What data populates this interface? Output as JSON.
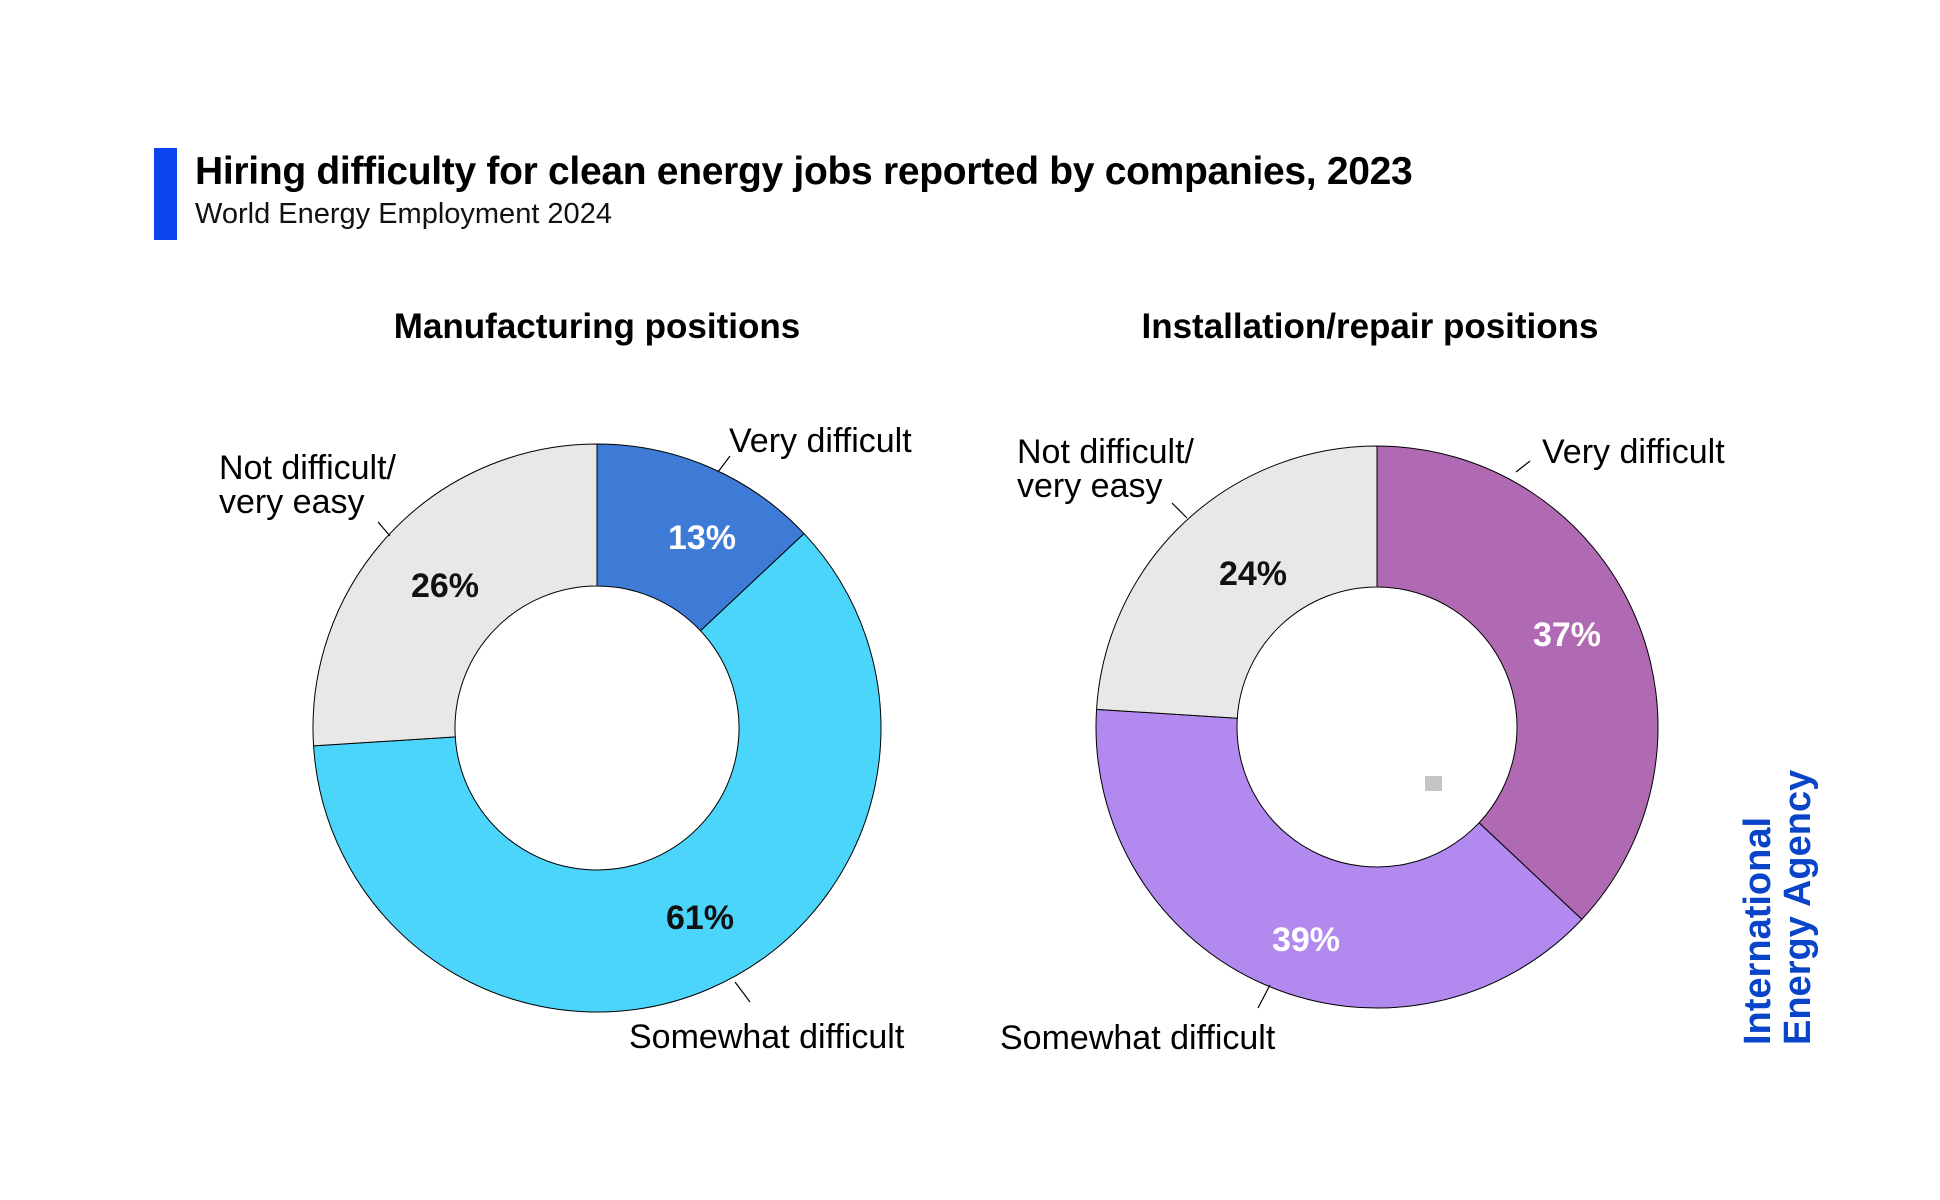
{
  "header": {
    "title": "Hiring difficulty for clean energy jobs reported by companies, 2023",
    "subtitle": "World Energy Employment 2024"
  },
  "brand": {
    "line1": "International",
    "line2": "Energy Agency",
    "color": "#0a44c8"
  },
  "colors": {
    "accent_bar": "#0a44f0"
  },
  "chart_data": [
    {
      "type": "pie",
      "title": "Manufacturing positions",
      "slices": [
        {
          "label": "Very difficult",
          "value": 13,
          "display": "13%",
          "color": "#3e7bd6",
          "value_color": "#ffffff"
        },
        {
          "label": "Somewhat difficult",
          "value": 61,
          "display": "61%",
          "color": "#4cd5fb",
          "value_color": "#111111"
        },
        {
          "label_lines": [
            "Not difficult/",
            "very easy"
          ],
          "value": 26,
          "display": "26%",
          "color": "#e8e8e8",
          "value_color": "#111111"
        }
      ]
    },
    {
      "type": "pie",
      "title": "Installation/repair positions",
      "slices": [
        {
          "label": "Very difficult",
          "value": 37,
          "display": "37%",
          "color": "#b06ab3",
          "value_color": "#ffffff"
        },
        {
          "label": "Somewhat difficult",
          "value": 39,
          "display": "39%",
          "color": "#b189ef",
          "value_color": "#ffffff"
        },
        {
          "label_lines": [
            "Not difficult/",
            "very easy"
          ],
          "value": 24,
          "display": "24%",
          "color": "#e8e8e8",
          "value_color": "#111111"
        }
      ]
    }
  ]
}
